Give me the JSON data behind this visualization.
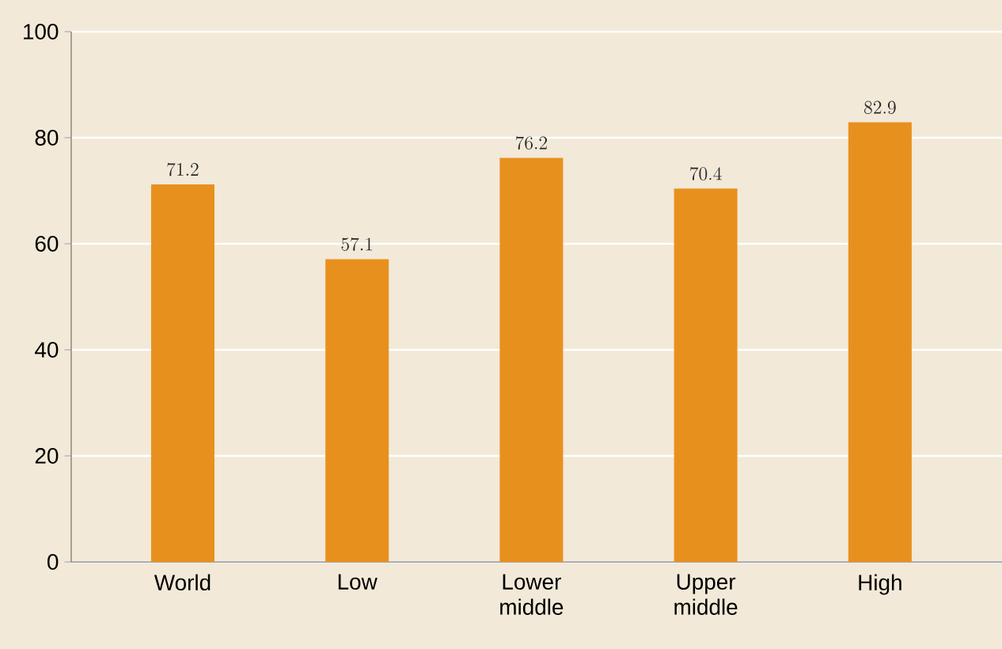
{
  "chart_data": {
    "type": "bar",
    "categories": [
      "World",
      "Low",
      "Lower middle",
      "Upper middle",
      "High"
    ],
    "values": [
      71.2,
      57.1,
      76.2,
      70.4,
      82.9
    ],
    "color": "#e8901e",
    "ylim": [
      0,
      100
    ],
    "yticks": [
      0,
      20,
      40,
      60,
      80,
      100
    ],
    "grid": "y",
    "data_labels": true
  }
}
